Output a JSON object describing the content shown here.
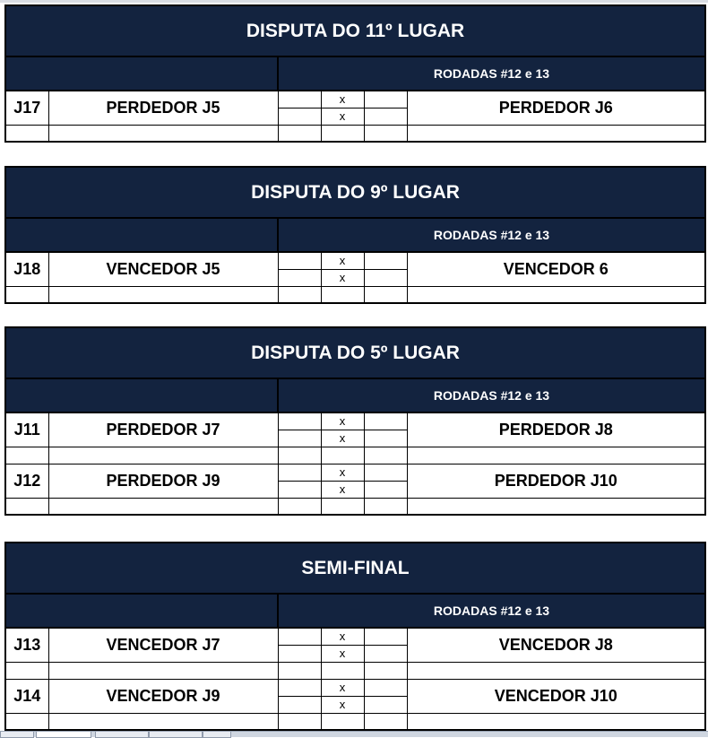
{
  "colors": {
    "header_bg": "#13233f",
    "header_text": "#ffffff"
  },
  "sections": [
    {
      "title": "DISPUTA DO 11º LUGAR",
      "subtitle": "RODADAS #12 e 13",
      "matches": [
        {
          "id": "J17",
          "home": "PERDEDOR J5",
          "sep": "x",
          "away": "PERDEDOR J6"
        }
      ]
    },
    {
      "title": "DISPUTA DO 9º LUGAR",
      "subtitle": "RODADAS #12 e 13",
      "matches": [
        {
          "id": "J18",
          "home": "VENCEDOR J5",
          "sep": "x",
          "away": "VENCEDOR 6"
        }
      ]
    },
    {
      "title": "DISPUTA DO 5º LUGAR",
      "subtitle": "RODADAS #12 e 13",
      "matches": [
        {
          "id": "J11",
          "home": "PERDEDOR J7",
          "sep": "x",
          "away": "PERDEDOR J8"
        },
        {
          "id": "J12",
          "home": "PERDEDOR J9",
          "sep": "x",
          "away": "PERDEDOR J10"
        }
      ]
    },
    {
      "title": "SEMI-FINAL",
      "subtitle": "RODADAS #12 e 13",
      "matches": [
        {
          "id": "J13",
          "home": "VENCEDOR J7",
          "sep": "x",
          "away": "VENCEDOR J8"
        },
        {
          "id": "J14",
          "home": "VENCEDOR J9",
          "sep": "x",
          "away": "VENCEDOR J10"
        }
      ]
    }
  ]
}
